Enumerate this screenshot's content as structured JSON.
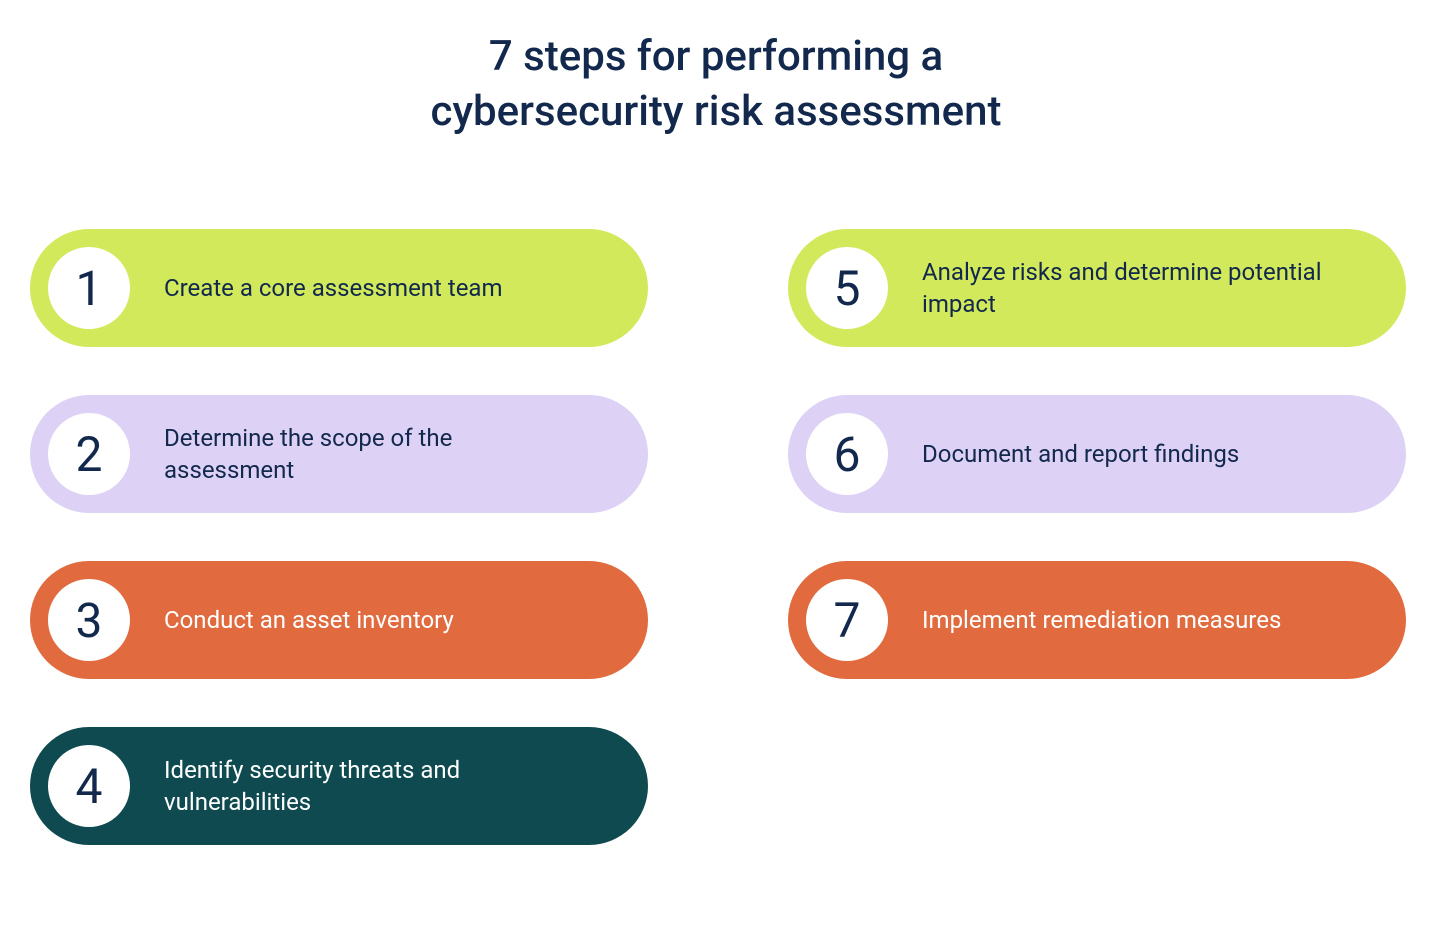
{
  "title": {
    "line1": "7 steps for performing a",
    "line2": "cybersecurity risk assessment",
    "color": "#12284c",
    "fontsize": 42
  },
  "layout": {
    "columns": 2,
    "column_gap": 140,
    "pill_gap": 48,
    "pill_height": 118,
    "pill_width": 618,
    "pill_radius": 70,
    "circle_diameter": 82,
    "circle_bg": "#ffffff"
  },
  "steps": [
    {
      "number": "1",
      "label": "Create a core assessment team",
      "bg_color": "#d2e95b",
      "text_color": "#12284c",
      "number_color": "#12284c"
    },
    {
      "number": "2",
      "label": "Determine the scope of the assessment",
      "bg_color": "#ddd2f5",
      "text_color": "#12284c",
      "number_color": "#12284c"
    },
    {
      "number": "3",
      "label": "Conduct an asset inventory",
      "bg_color": "#e16b3f",
      "text_color": "#ffffff",
      "number_color": "#12284c"
    },
    {
      "number": "4",
      "label": "Identify security threats and vulnerabilities",
      "bg_color": "#0e4a4f",
      "text_color": "#ffffff",
      "number_color": "#12284c"
    },
    {
      "number": "5",
      "label": "Analyze risks and determine potential impact",
      "bg_color": "#d2e95b",
      "text_color": "#12284c",
      "number_color": "#12284c"
    },
    {
      "number": "6",
      "label": "Document and report findings",
      "bg_color": "#ddd2f5",
      "text_color": "#12284c",
      "number_color": "#12284c"
    },
    {
      "number": "7",
      "label": "Implement remediation measures",
      "bg_color": "#e16b3f",
      "text_color": "#ffffff",
      "number_color": "#12284c"
    }
  ],
  "left_column_indices": [
    0,
    1,
    2,
    3
  ],
  "right_column_indices": [
    4,
    5,
    6
  ]
}
